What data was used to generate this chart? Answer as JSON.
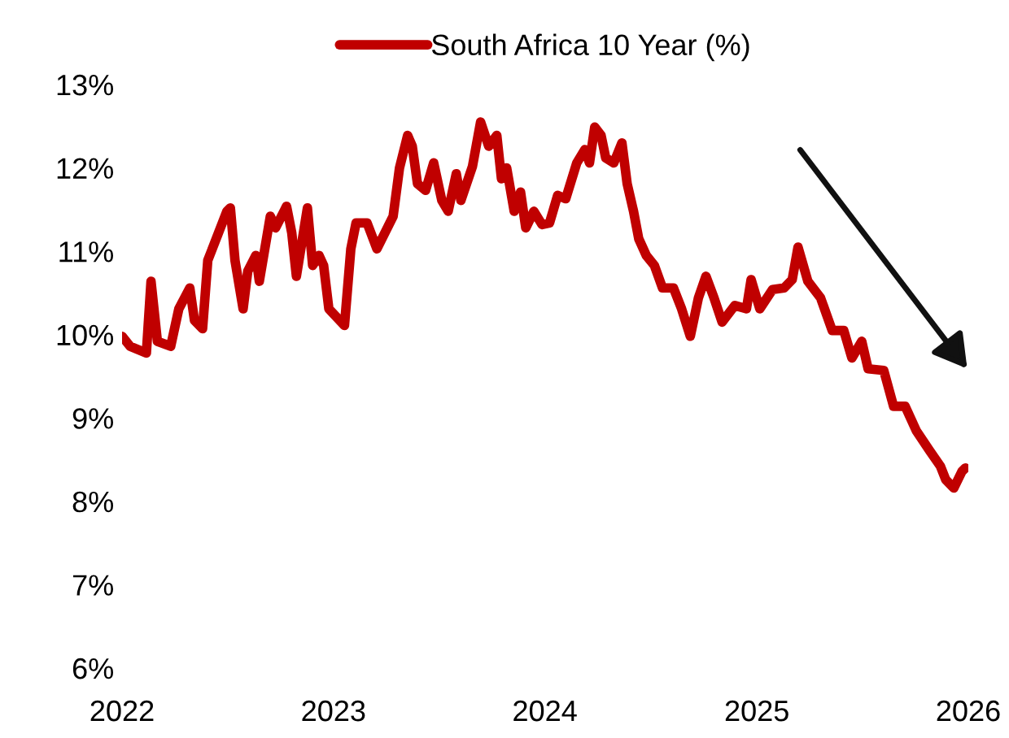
{
  "chart_data": {
    "type": "line",
    "x": [
      "2022-01-01",
      "2022-01-15",
      "2022-02-12",
      "2022-02-20",
      "2022-03-03",
      "2022-03-26",
      "2022-04-09",
      "2022-04-28",
      "2022-05-06",
      "2022-05-20",
      "2022-05-29",
      "2022-07-01",
      "2022-07-07",
      "2022-07-15",
      "2022-07-29",
      "2022-08-06",
      "2022-08-20",
      "2022-08-26",
      "2022-09-14",
      "2022-09-23",
      "2022-10-12",
      "2022-10-21",
      "2022-10-29",
      "2022-11-17",
      "2022-11-26",
      "2022-12-07",
      "2022-12-15",
      "2022-12-24",
      "2023-01-20",
      "2023-01-31",
      "2023-02-09",
      "2023-02-28",
      "2023-03-17",
      "2023-04-14",
      "2023-04-25",
      "2023-05-09",
      "2023-05-17",
      "2023-05-26",
      "2023-06-09",
      "2023-06-23",
      "2023-07-07",
      "2023-07-18",
      "2023-08-01",
      "2023-08-09",
      "2023-08-29",
      "2023-09-12",
      "2023-09-26",
      "2023-10-10",
      "2023-10-18",
      "2023-10-27",
      "2023-11-09",
      "2023-11-20",
      "2023-11-29",
      "2023-12-13",
      "2023-12-27",
      "2024-01-09",
      "2024-01-23",
      "2024-02-06",
      "2024-02-25",
      "2024-03-10",
      "2024-03-18",
      "2024-03-27",
      "2024-04-07",
      "2024-04-15",
      "2024-04-29",
      "2024-05-13",
      "2024-05-22",
      "2024-06-02",
      "2024-06-11",
      "2024-06-24",
      "2024-07-08",
      "2024-07-22",
      "2024-08-10",
      "2024-08-24",
      "2024-09-08",
      "2024-09-22",
      "2024-10-05",
      "2024-10-19",
      "2024-11-02",
      "2024-11-24",
      "2024-12-14",
      "2024-12-22",
      "2025-01-06",
      "2025-01-28",
      "2025-02-17",
      "2025-03-03",
      "2025-03-13",
      "2025-03-30",
      "2025-04-21",
      "2025-05-11",
      "2025-05-31",
      "2025-06-14",
      "2025-07-01",
      "2025-07-12",
      "2025-08-08",
      "2025-08-25",
      "2025-09-14",
      "2025-10-03",
      "2025-10-26",
      "2025-11-14",
      "2025-11-23",
      "2025-12-07",
      "2025-12-21",
      "2025-12-27"
    ],
    "series": [
      {
        "name": "South Africa 10 Year (%)",
        "color": "#c00000",
        "values": [
          9.98,
          9.86,
          9.78,
          10.64,
          9.92,
          9.86,
          10.31,
          10.56,
          10.17,
          10.07,
          10.89,
          11.48,
          11.52,
          10.89,
          10.31,
          10.76,
          10.95,
          10.64,
          11.42,
          11.28,
          11.54,
          11.22,
          10.7,
          11.52,
          10.83,
          10.95,
          10.83,
          10.31,
          10.11,
          11.03,
          11.34,
          11.34,
          11.03,
          11.42,
          12.0,
          12.39,
          12.26,
          11.81,
          11.73,
          12.06,
          11.61,
          11.48,
          11.93,
          11.61,
          12.02,
          12.55,
          12.26,
          12.39,
          11.87,
          12.0,
          11.48,
          11.71,
          11.28,
          11.48,
          11.32,
          11.34,
          11.67,
          11.63,
          12.06,
          12.22,
          12.06,
          12.49,
          12.39,
          12.12,
          12.06,
          12.3,
          11.81,
          11.48,
          11.15,
          10.95,
          10.83,
          10.56,
          10.56,
          10.31,
          9.98,
          10.44,
          10.7,
          10.44,
          10.15,
          10.35,
          10.31,
          10.66,
          10.31,
          10.54,
          10.56,
          10.66,
          11.05,
          10.64,
          10.44,
          10.05,
          10.05,
          9.72,
          9.92,
          9.59,
          9.57,
          9.14,
          9.14,
          8.85,
          8.61,
          8.42,
          8.26,
          8.16,
          8.36,
          8.4
        ]
      }
    ],
    "xlim": [
      "2022-01-01",
      "2026-01-01"
    ],
    "xticks": [
      {
        "value": "2022-01-01",
        "label": "2022"
      },
      {
        "value": "2023-01-01",
        "label": "2023"
      },
      {
        "value": "2024-01-01",
        "label": "2024"
      },
      {
        "value": "2025-01-01",
        "label": "2025"
      },
      {
        "value": "2026-01-01",
        "label": "2026"
      }
    ],
    "ylim": [
      6,
      13
    ],
    "yticks": [
      {
        "value": 6,
        "label": "6%"
      },
      {
        "value": 7,
        "label": "7%"
      },
      {
        "value": 8,
        "label": "8%"
      },
      {
        "value": 9,
        "label": "9%"
      },
      {
        "value": 10,
        "label": "10%"
      },
      {
        "value": 11,
        "label": "11%"
      },
      {
        "value": 12,
        "label": "12%"
      },
      {
        "value": 13,
        "label": "13%"
      }
    ],
    "grid": false,
    "legend": "top",
    "marker": "none",
    "line_style": "solid"
  }
}
